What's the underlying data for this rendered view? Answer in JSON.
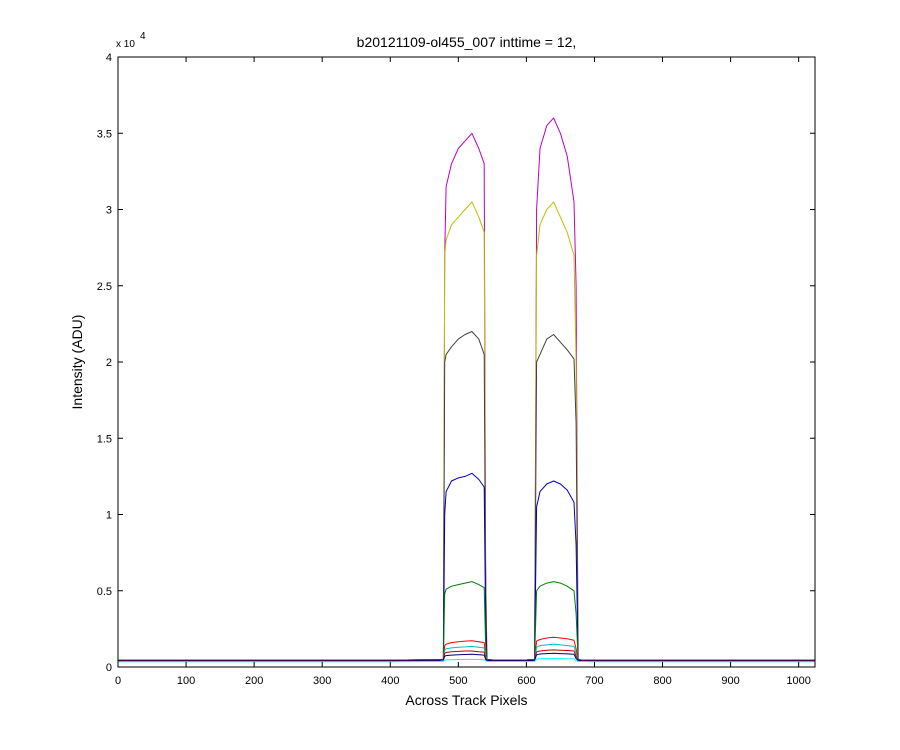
{
  "chart_data": {
    "type": "line",
    "title": "b20121109-ol455_007 inttime = 12,",
    "xlabel": "Across Track Pixels",
    "ylabel": "Intensity (ADU)",
    "xlim": [
      0,
      1024
    ],
    "ylim": [
      0,
      40000
    ],
    "y_multiplier": {
      "base": "x 10",
      "exponent": "4"
    },
    "xticks": [
      0,
      100,
      200,
      300,
      400,
      500,
      600,
      700,
      800,
      900,
      1000
    ],
    "yticks": [
      0,
      0.5,
      1,
      1.5,
      2,
      2.5,
      3,
      3.5,
      4
    ],
    "ytick_labels": [
      "0",
      "0.5",
      "1",
      "1.5",
      "2",
      "2.5",
      "3",
      "3.5",
      "4"
    ],
    "grid": false,
    "legend": "none",
    "x": [
      0,
      100,
      200,
      300,
      400,
      470,
      478,
      480,
      482,
      490,
      500,
      510,
      520,
      530,
      538,
      540,
      542,
      550,
      600,
      612,
      615,
      620,
      630,
      640,
      650,
      660,
      670,
      673,
      676,
      680,
      700,
      800,
      900,
      1024
    ],
    "series": [
      {
        "color": "#bf00bf",
        "values": [
          450,
          450,
          450,
          450,
          450,
          470,
          500,
          27000,
          31500,
          33000,
          34000,
          34500,
          35000,
          34000,
          33000,
          7000,
          500,
          460,
          460,
          500,
          30000,
          34000,
          35500,
          36000,
          35000,
          33500,
          30500,
          25000,
          500,
          460,
          450,
          450,
          450,
          450
        ]
      },
      {
        "color": "#bfbf00",
        "values": [
          450,
          450,
          450,
          450,
          450,
          470,
          500,
          27000,
          28000,
          29000,
          29500,
          30000,
          30500,
          29500,
          28500,
          6000,
          500,
          460,
          460,
          500,
          27000,
          29000,
          30000,
          30500,
          29500,
          28500,
          27000,
          20000,
          500,
          460,
          450,
          450,
          450,
          450
        ]
      },
      {
        "color": "#404040",
        "values": [
          450,
          450,
          450,
          450,
          450,
          470,
          500,
          20000,
          20500,
          21000,
          21500,
          21800,
          22000,
          21500,
          20500,
          5000,
          500,
          460,
          460,
          500,
          20000,
          20500,
          21500,
          21800,
          21300,
          20800,
          20200,
          16000,
          500,
          460,
          450,
          450,
          450,
          450
        ]
      },
      {
        "color": "#0000bf",
        "values": [
          450,
          450,
          450,
          450,
          450,
          470,
          500,
          10000,
          11500,
          12200,
          12400,
          12500,
          12700,
          12300,
          11800,
          3000,
          500,
          460,
          460,
          500,
          10500,
          11500,
          12000,
          12200,
          12000,
          11600,
          10800,
          8000,
          500,
          460,
          450,
          450,
          450,
          450
        ]
      },
      {
        "color": "#007f00",
        "values": [
          450,
          450,
          450,
          450,
          450,
          470,
          500,
          4800,
          5100,
          5300,
          5400,
          5500,
          5600,
          5400,
          5200,
          1500,
          500,
          460,
          460,
          500,
          5000,
          5300,
          5500,
          5600,
          5500,
          5300,
          5000,
          3500,
          500,
          460,
          450,
          450,
          450,
          450
        ]
      },
      {
        "color": "#ff0000",
        "values": [
          450,
          450,
          450,
          450,
          450,
          470,
          500,
          1400,
          1500,
          1600,
          1650,
          1700,
          1720,
          1650,
          1600,
          800,
          480,
          460,
          460,
          480,
          1700,
          1800,
          1900,
          1950,
          1900,
          1850,
          1750,
          1200,
          480,
          460,
          450,
          450,
          450,
          450
        ]
      },
      {
        "color": "#00bfbf",
        "values": [
          450,
          450,
          450,
          450,
          450,
          470,
          480,
          1100,
          1200,
          1250,
          1300,
          1320,
          1350,
          1300,
          1250,
          700,
          470,
          460,
          460,
          470,
          1300,
          1400,
          1450,
          1500,
          1450,
          1400,
          1350,
          900,
          470,
          460,
          450,
          450,
          450,
          450
        ]
      },
      {
        "color": "#bf0000",
        "values": [
          450,
          450,
          450,
          450,
          450,
          470,
          480,
          900,
          950,
          1000,
          1020,
          1050,
          1050,
          1000,
          980,
          600,
          470,
          460,
          460,
          470,
          1000,
          1050,
          1100,
          1120,
          1100,
          1080,
          1050,
          700,
          470,
          460,
          450,
          450,
          450,
          450
        ]
      },
      {
        "color": "#000080",
        "values": [
          400,
          400,
          400,
          400,
          400,
          420,
          450,
          700,
          750,
          780,
          800,
          820,
          830,
          800,
          780,
          500,
          430,
          410,
          410,
          430,
          800,
          850,
          880,
          900,
          880,
          860,
          830,
          550,
          430,
          410,
          400,
          400,
          400,
          400
        ]
      },
      {
        "color": "#00ffff",
        "values": [
          350,
          350,
          350,
          350,
          350,
          360,
          380,
          450,
          470,
          480,
          490,
          500,
          500,
          490,
          480,
          400,
          370,
          360,
          360,
          370,
          520,
          540,
          550,
          560,
          550,
          540,
          530,
          420,
          370,
          360,
          350,
          350,
          350,
          350
        ]
      }
    ]
  }
}
